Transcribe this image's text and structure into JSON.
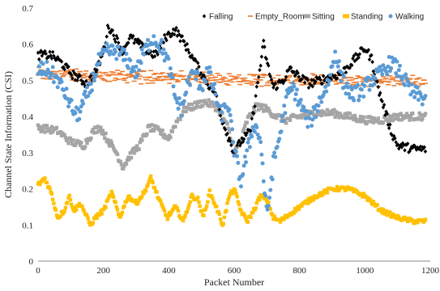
{
  "chart_data": {
    "type": "scatter",
    "xlabel": "Packet Number",
    "ylabel": "Channel State Information (CSI)",
    "xlim": [
      0,
      1200
    ],
    "ylim": [
      0,
      0.7
    ],
    "xticks": [
      "0",
      "200",
      "400",
      "600",
      "800",
      "1000",
      "1200"
    ],
    "yticks": [
      "0",
      "0.1",
      "0.2",
      "0.3",
      "0.4",
      "0.5",
      "0.6",
      "0.7"
    ],
    "grid": false,
    "legend_position": "top-right",
    "series": [
      {
        "name": "Falling",
        "marker": "diamond",
        "color": "#000000",
        "keypoints": [
          [
            0,
            0.57
          ],
          [
            40,
            0.57
          ],
          [
            70,
            0.55
          ],
          [
            100,
            0.52
          ],
          [
            150,
            0.49
          ],
          [
            180,
            0.53
          ],
          [
            200,
            0.58
          ],
          [
            215,
            0.65
          ],
          [
            230,
            0.63
          ],
          [
            260,
            0.58
          ],
          [
            280,
            0.62
          ],
          [
            310,
            0.6
          ],
          [
            330,
            0.58
          ],
          [
            360,
            0.57
          ],
          [
            390,
            0.62
          ],
          [
            420,
            0.64
          ],
          [
            450,
            0.6
          ],
          [
            480,
            0.55
          ],
          [
            500,
            0.52
          ],
          [
            520,
            0.49
          ],
          [
            540,
            0.47
          ],
          [
            560,
            0.4
          ],
          [
            580,
            0.35
          ],
          [
            600,
            0.3
          ],
          [
            620,
            0.33
          ],
          [
            650,
            0.36
          ],
          [
            670,
            0.48
          ],
          [
            690,
            0.6
          ],
          [
            700,
            0.55
          ],
          [
            720,
            0.48
          ],
          [
            750,
            0.5
          ],
          [
            770,
            0.53
          ],
          [
            800,
            0.51
          ],
          [
            830,
            0.49
          ],
          [
            860,
            0.5
          ],
          [
            900,
            0.51
          ],
          [
            930,
            0.52
          ],
          [
            960,
            0.55
          ],
          [
            990,
            0.58
          ],
          [
            1000,
            0.59
          ],
          [
            1020,
            0.56
          ],
          [
            1040,
            0.48
          ],
          [
            1060,
            0.42
          ],
          [
            1080,
            0.36
          ],
          [
            1100,
            0.32
          ],
          [
            1150,
            0.31
          ],
          [
            1180,
            0.31
          ]
        ]
      },
      {
        "name": "Empty_Room",
        "marker": "dash",
        "color": "#ED7D31",
        "keypoints": [
          [
            0,
            0.52
          ],
          [
            200,
            0.51
          ],
          [
            400,
            0.51
          ],
          [
            600,
            0.5
          ],
          [
            800,
            0.5
          ],
          [
            1000,
            0.5
          ],
          [
            1180,
            0.5
          ]
        ]
      },
      {
        "name": "Sitting",
        "marker": "square",
        "color": "#A5A5A5",
        "keypoints": [
          [
            0,
            0.37
          ],
          [
            60,
            0.36
          ],
          [
            100,
            0.33
          ],
          [
            140,
            0.32
          ],
          [
            170,
            0.36
          ],
          [
            190,
            0.37
          ],
          [
            210,
            0.34
          ],
          [
            240,
            0.3
          ],
          [
            260,
            0.26
          ],
          [
            280,
            0.29
          ],
          [
            310,
            0.32
          ],
          [
            340,
            0.37
          ],
          [
            370,
            0.36
          ],
          [
            400,
            0.34
          ],
          [
            420,
            0.38
          ],
          [
            450,
            0.42
          ],
          [
            480,
            0.43
          ],
          [
            510,
            0.44
          ],
          [
            540,
            0.43
          ],
          [
            560,
            0.41
          ],
          [
            580,
            0.37
          ],
          [
            600,
            0.3
          ],
          [
            620,
            0.33
          ],
          [
            640,
            0.39
          ],
          [
            670,
            0.43
          ],
          [
            700,
            0.42
          ],
          [
            730,
            0.4
          ],
          [
            760,
            0.39
          ],
          [
            800,
            0.4
          ],
          [
            850,
            0.41
          ],
          [
            900,
            0.41
          ],
          [
            950,
            0.4
          ],
          [
            1000,
            0.39
          ],
          [
            1050,
            0.39
          ],
          [
            1100,
            0.4
          ],
          [
            1180,
            0.4
          ]
        ]
      },
      {
        "name": "Standing",
        "marker": "square",
        "color": "#FFC000",
        "keypoints": [
          [
            0,
            0.21
          ],
          [
            20,
            0.23
          ],
          [
            40,
            0.19
          ],
          [
            60,
            0.12
          ],
          [
            80,
            0.14
          ],
          [
            95,
            0.18
          ],
          [
            110,
            0.14
          ],
          [
            130,
            0.16
          ],
          [
            160,
            0.1
          ],
          [
            175,
            0.12
          ],
          [
            200,
            0.14
          ],
          [
            225,
            0.19
          ],
          [
            250,
            0.12
          ],
          [
            275,
            0.18
          ],
          [
            300,
            0.16
          ],
          [
            325,
            0.19
          ],
          [
            345,
            0.23
          ],
          [
            370,
            0.17
          ],
          [
            395,
            0.12
          ],
          [
            420,
            0.15
          ],
          [
            445,
            0.11
          ],
          [
            470,
            0.18
          ],
          [
            490,
            0.17
          ],
          [
            505,
            0.12
          ],
          [
            525,
            0.19
          ],
          [
            545,
            0.15
          ],
          [
            565,
            0.1
          ],
          [
            585,
            0.18
          ],
          [
            600,
            0.2
          ],
          [
            620,
            0.14
          ],
          [
            640,
            0.11
          ],
          [
            660,
            0.14
          ],
          [
            680,
            0.18
          ],
          [
            700,
            0.17
          ],
          [
            720,
            0.12
          ],
          [
            740,
            0.11
          ],
          [
            770,
            0.13
          ],
          [
            800,
            0.15
          ],
          [
            850,
            0.18
          ],
          [
            900,
            0.2
          ],
          [
            950,
            0.2
          ],
          [
            1000,
            0.18
          ],
          [
            1050,
            0.14
          ],
          [
            1100,
            0.12
          ],
          [
            1150,
            0.11
          ],
          [
            1180,
            0.11
          ]
        ]
      },
      {
        "name": "Walking",
        "marker": "circle",
        "color": "#5B9BD5",
        "keypoints": [
          [
            0,
            0.53
          ],
          [
            30,
            0.53
          ],
          [
            60,
            0.5
          ],
          [
            80,
            0.47
          ],
          [
            100,
            0.43
          ],
          [
            120,
            0.4
          ],
          [
            140,
            0.44
          ],
          [
            160,
            0.48
          ],
          [
            185,
            0.55
          ],
          [
            210,
            0.58
          ],
          [
            240,
            0.58
          ],
          [
            270,
            0.56
          ],
          [
            300,
            0.52
          ],
          [
            320,
            0.57
          ],
          [
            350,
            0.62
          ],
          [
            380,
            0.59
          ],
          [
            400,
            0.54
          ],
          [
            420,
            0.45
          ],
          [
            440,
            0.42
          ],
          [
            460,
            0.5
          ],
          [
            480,
            0.52
          ],
          [
            500,
            0.48
          ],
          [
            520,
            0.53
          ],
          [
            540,
            0.47
          ],
          [
            560,
            0.4
          ],
          [
            580,
            0.44
          ],
          [
            600,
            0.31
          ],
          [
            620,
            0.22
          ],
          [
            640,
            0.3
          ],
          [
            660,
            0.38
          ],
          [
            680,
            0.34
          ],
          [
            700,
            0.12
          ],
          [
            720,
            0.27
          ],
          [
            740,
            0.35
          ],
          [
            760,
            0.45
          ],
          [
            780,
            0.48
          ],
          [
            800,
            0.44
          ],
          [
            830,
            0.38
          ],
          [
            860,
            0.44
          ],
          [
            890,
            0.5
          ],
          [
            910,
            0.58
          ],
          [
            930,
            0.5
          ],
          [
            960,
            0.46
          ],
          [
            990,
            0.47
          ],
          [
            1020,
            0.5
          ],
          [
            1050,
            0.52
          ],
          [
            1080,
            0.55
          ],
          [
            1110,
            0.52
          ],
          [
            1140,
            0.47
          ],
          [
            1180,
            0.45
          ]
        ]
      }
    ]
  }
}
